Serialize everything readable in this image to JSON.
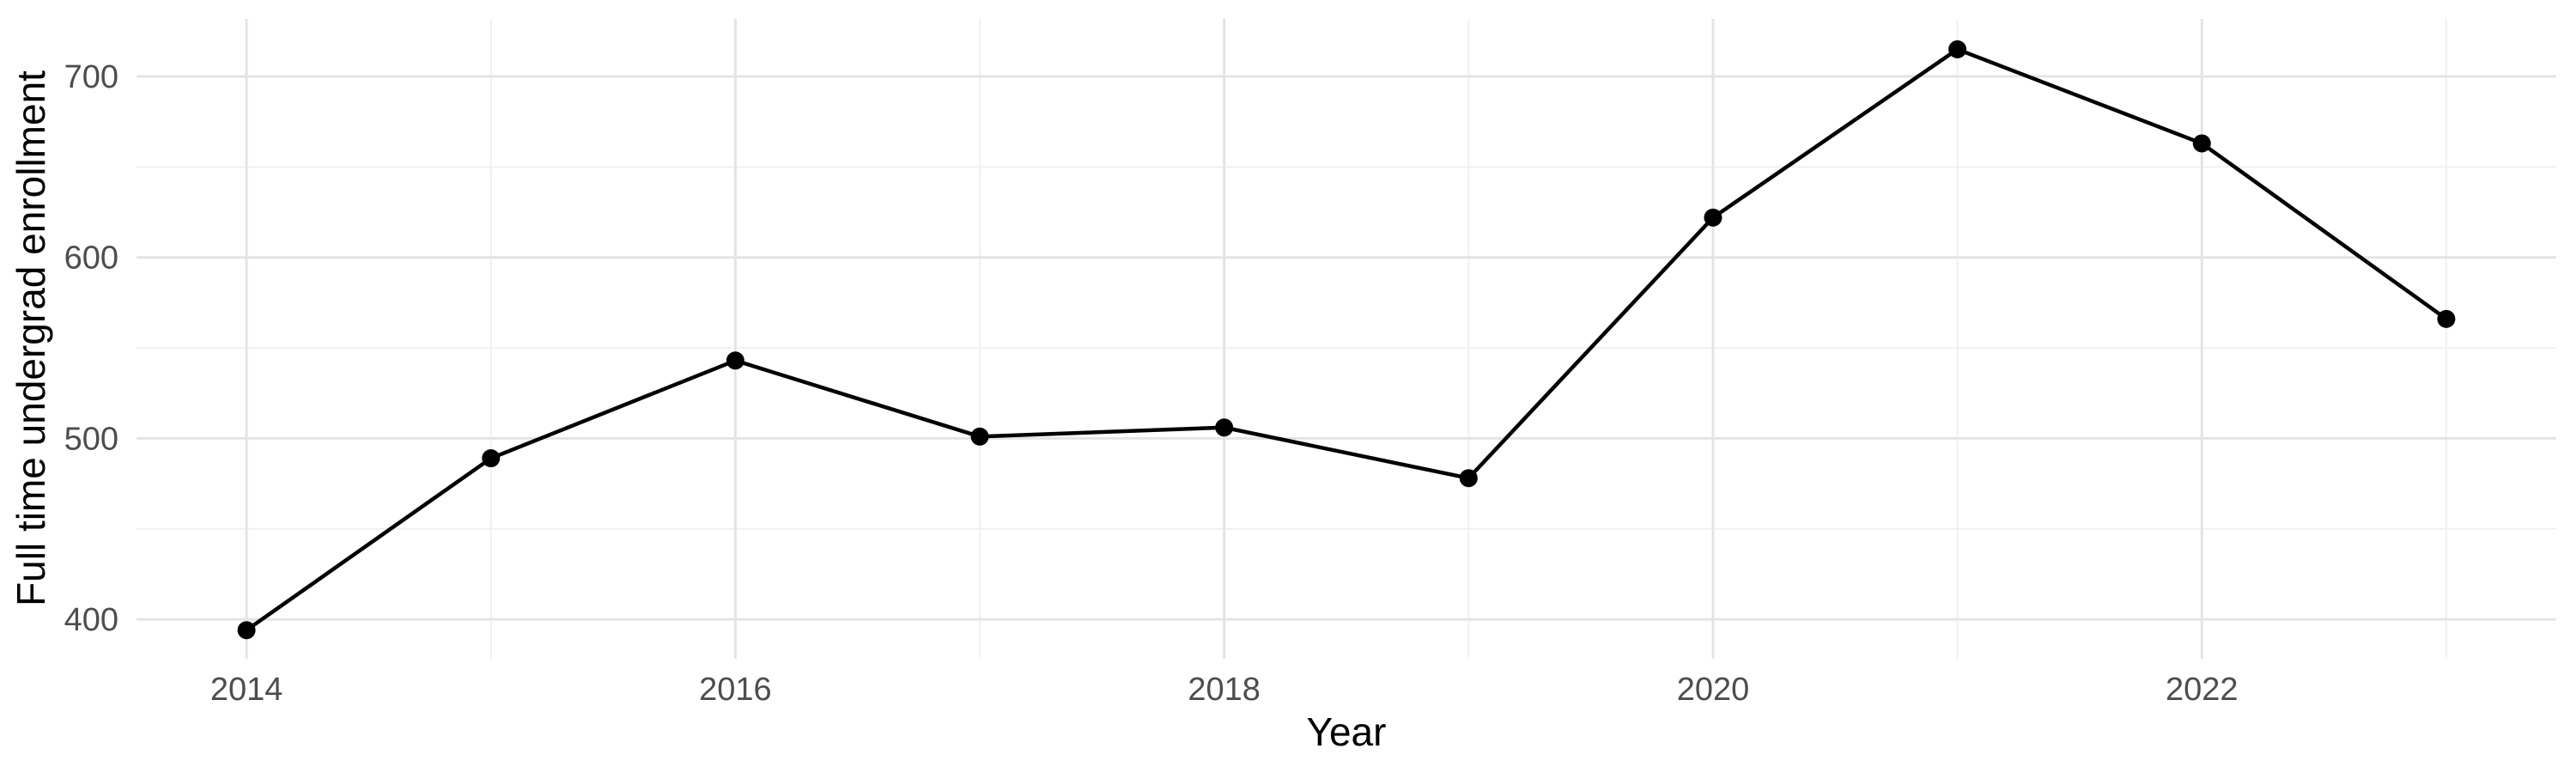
{
  "chart_data": {
    "type": "line",
    "title": "",
    "xlabel": "Year",
    "ylabel": "Full time undergrad enrollment",
    "x": [
      2014,
      2015,
      2016,
      2017,
      2018,
      2019,
      2020,
      2021,
      2022,
      2023
    ],
    "series": [
      {
        "name": "Full time undergrad enrollment",
        "values": [
          394,
          489,
          543,
          501,
          506,
          478,
          622,
          715,
          663,
          566
        ]
      }
    ],
    "x_major_ticks": [
      2014,
      2016,
      2018,
      2020,
      2022
    ],
    "x_minor_gridlines": [
      2015,
      2017,
      2019,
      2021,
      2023
    ],
    "y_major_ticks": [
      400,
      500,
      600,
      700
    ],
    "y_minor_gridlines": [
      450,
      550,
      650
    ],
    "xlim": [
      2013.55,
      2023.45
    ],
    "ylim": [
      378.2,
      731.8
    ],
    "grid": true,
    "legend_position": "none",
    "point_marker": "filled-circle",
    "colors": {
      "line": "#000000",
      "point": "#000000",
      "grid_major": "#E4E4E4",
      "grid_minor": "#EFEFEF",
      "tick_text": "#4D4D4D",
      "axis_title_text": "#000000",
      "background": "#FFFFFF"
    }
  }
}
